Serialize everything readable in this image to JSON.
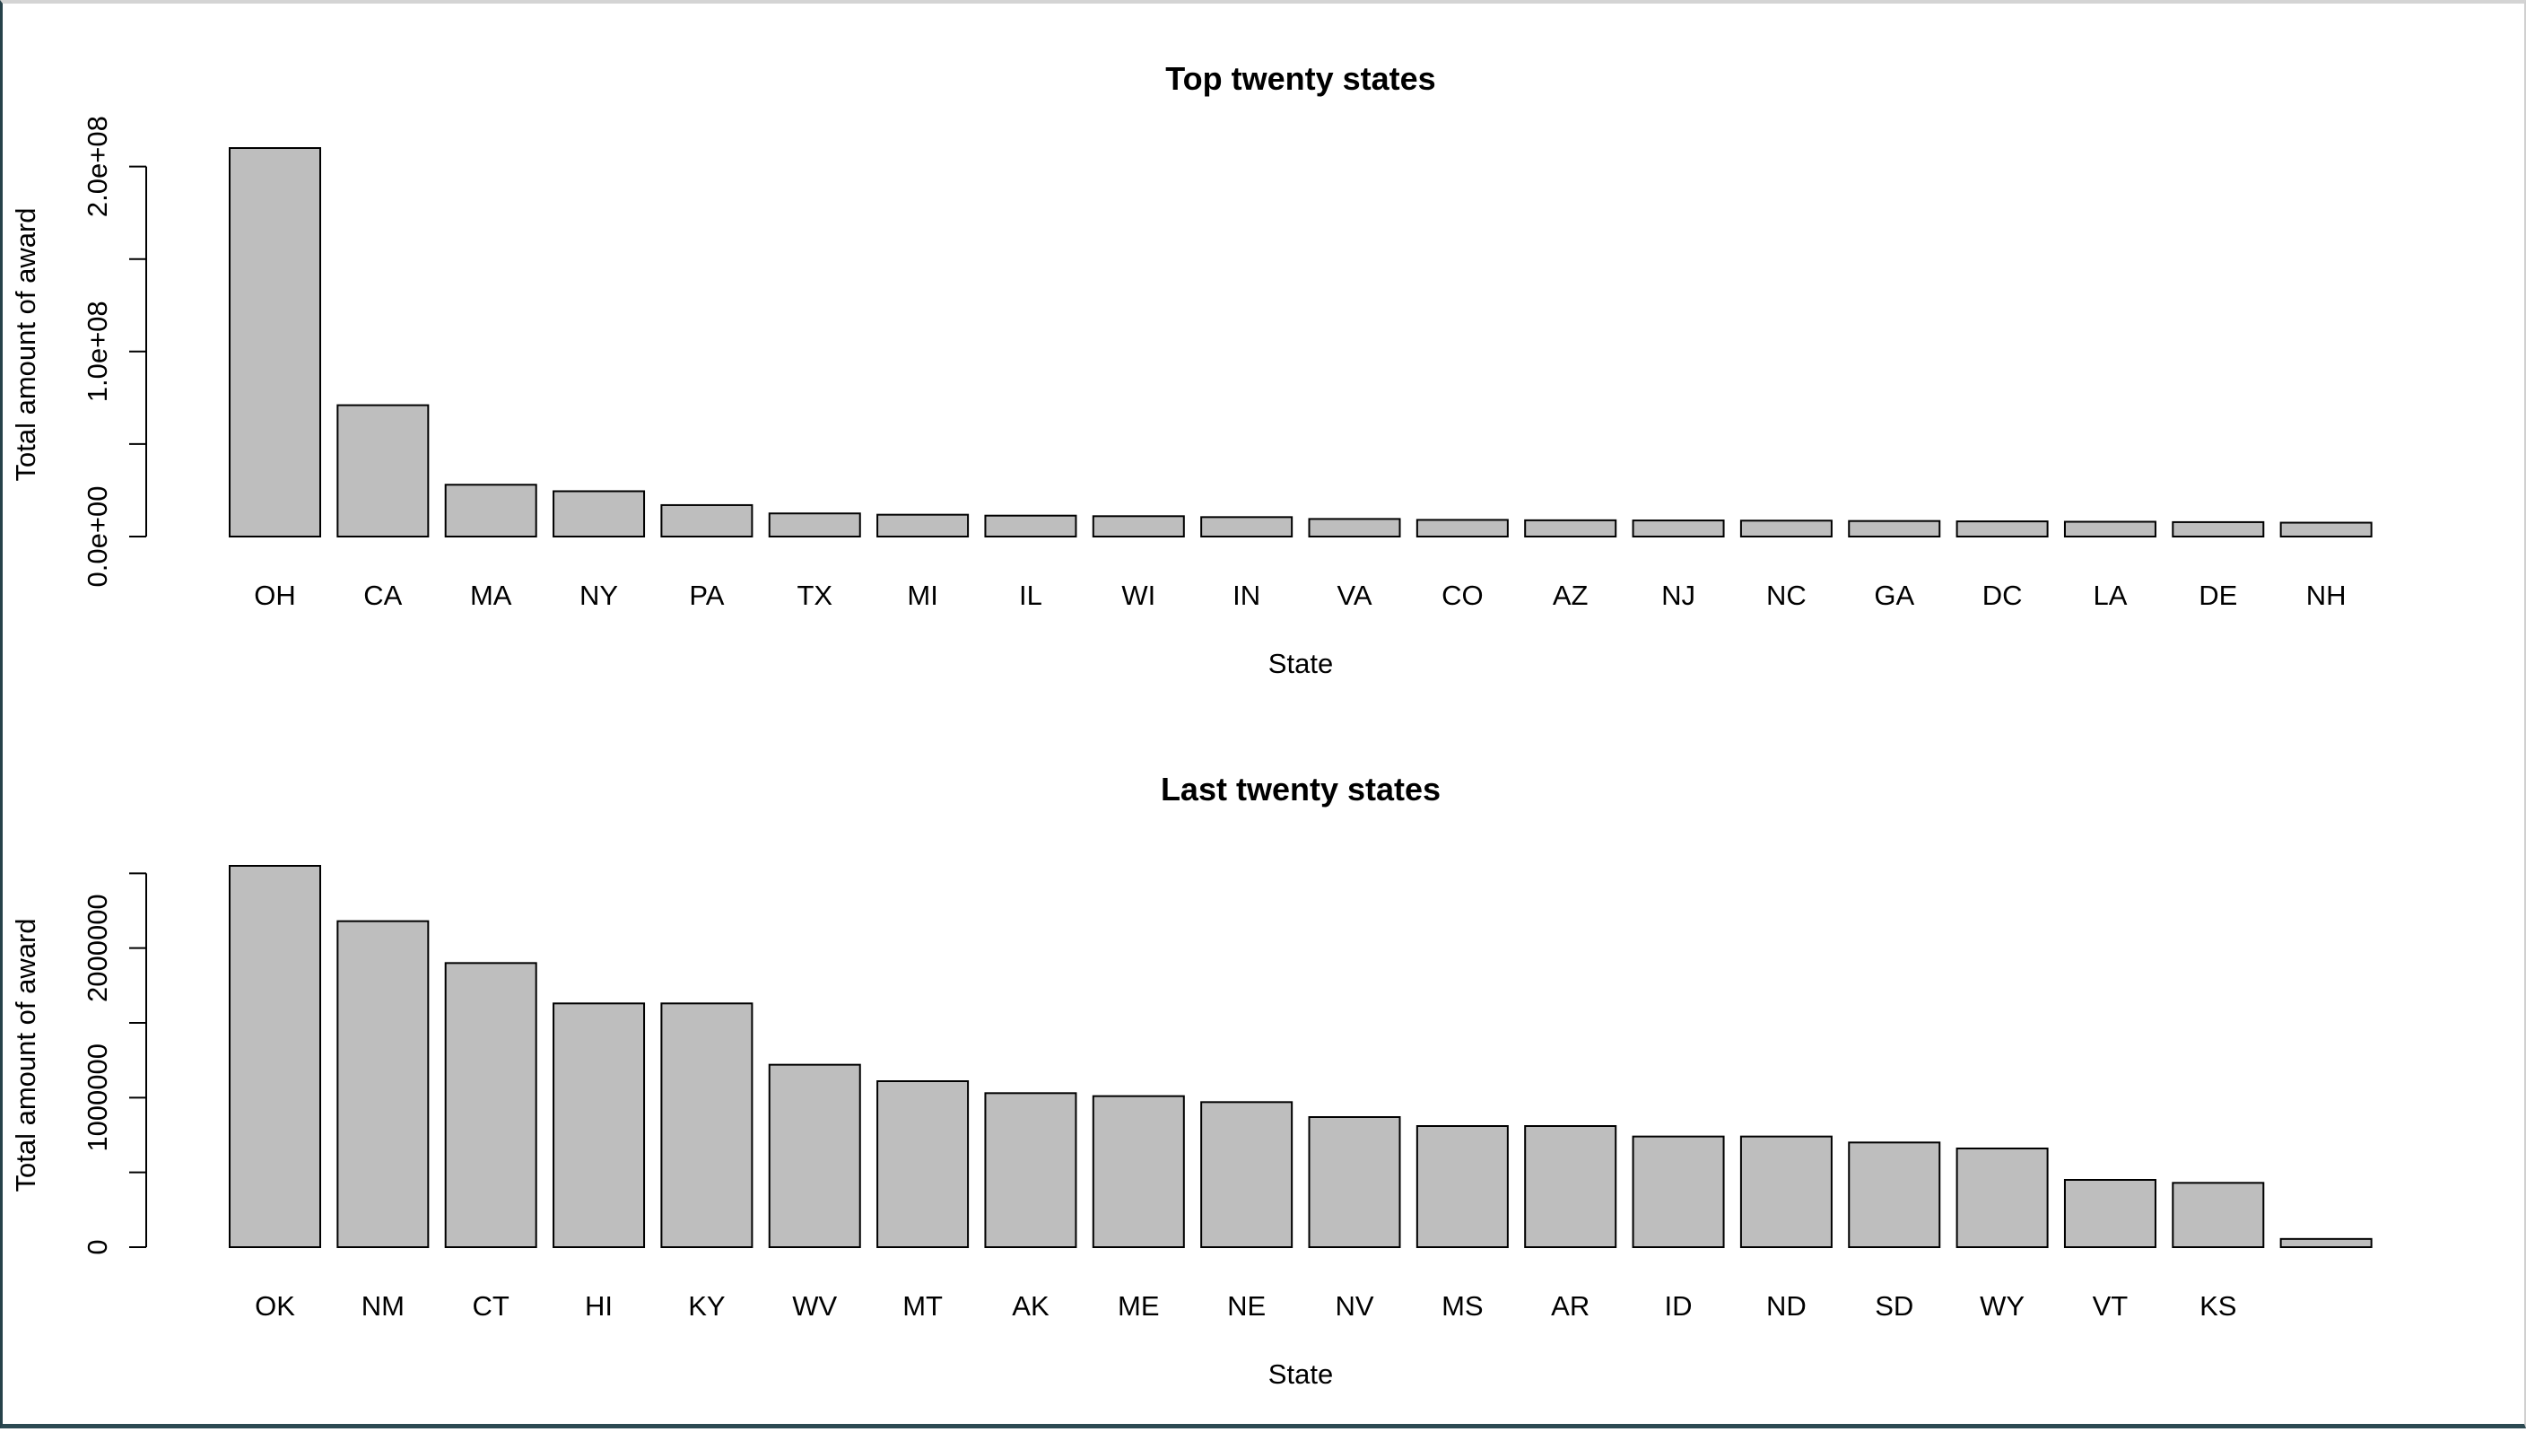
{
  "chart_data": [
    {
      "type": "bar",
      "title": "Top twenty states",
      "xlabel": "State",
      "ylabel": "Total amount of award",
      "ylim": [
        0,
        210000000
      ],
      "yticks": [
        0,
        50000000,
        100000000,
        150000000,
        200000000
      ],
      "ytick_labels": [
        "0.0e+00",
        "",
        "1.0e+08",
        "",
        "2.0e+08"
      ],
      "categories": [
        "OH",
        "CA",
        "MA",
        "NY",
        "PA",
        "TX",
        "MI",
        "IL",
        "WI",
        "IN",
        "VA",
        "CO",
        "AZ",
        "NJ",
        "NC",
        "GA",
        "DC",
        "LA",
        "DE",
        "NH"
      ],
      "values": [
        210000000,
        71000000,
        28000000,
        24500000,
        17000000,
        12500000,
        11800000,
        11300000,
        11000000,
        10500000,
        9500000,
        9000000,
        8800000,
        8700000,
        8600000,
        8400000,
        8200000,
        8000000,
        7800000,
        7500000
      ],
      "bar_color": "#bebebe",
      "grid": false,
      "legend": "none"
    },
    {
      "type": "bar",
      "title": "Last twenty states",
      "xlabel": "State",
      "ylabel": "Total amount of award",
      "ylim": [
        0,
        2550000
      ],
      "yticks": [
        0,
        500000,
        1000000,
        1500000,
        2000000,
        2500000
      ],
      "ytick_labels": [
        "0",
        "",
        "1000000",
        "",
        "2000000",
        ""
      ],
      "categories": [
        "OK",
        "NM",
        "CT",
        "HI",
        "KY",
        "WV",
        "MT",
        "AK",
        "ME",
        "NE",
        "NV",
        "MS",
        "AR",
        "ID",
        "ND",
        "SD",
        "WY",
        "VT",
        "KS",
        ""
      ],
      "values": [
        2550000,
        2180000,
        1900000,
        1630000,
        1630000,
        1220000,
        1110000,
        1030000,
        1010000,
        970000,
        870000,
        810000,
        810000,
        740000,
        740000,
        700000,
        660000,
        450000,
        430000,
        55000
      ],
      "bar_color": "#bebebe",
      "grid": false,
      "legend": "none"
    }
  ]
}
